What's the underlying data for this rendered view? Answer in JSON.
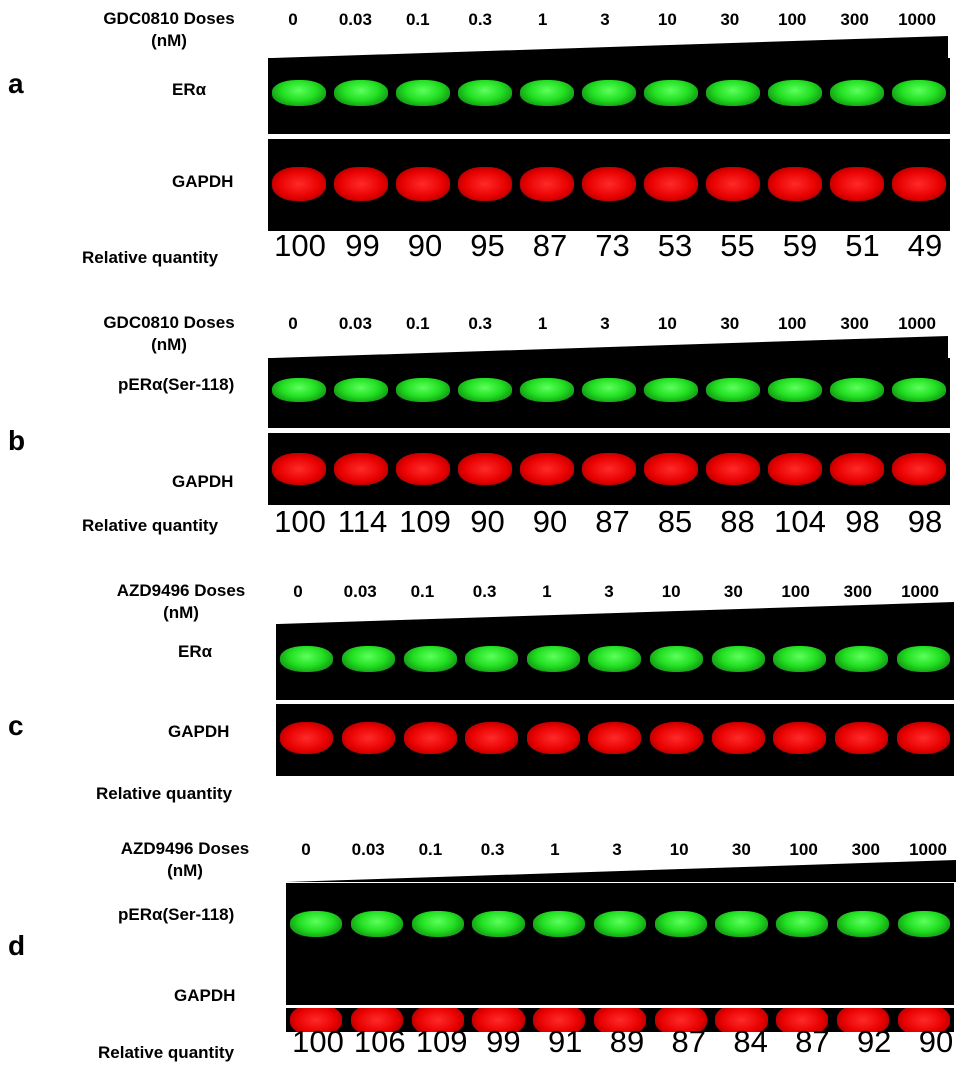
{
  "doses": [
    "0",
    "0.03",
    "0.1",
    "0.3",
    "1",
    "3",
    "10",
    "30",
    "100",
    "300",
    "1000"
  ],
  "panels": [
    {
      "letter": "a",
      "dose_title": "GDC0810 Doses",
      "dose_unit": "(nM)",
      "bands": [
        "ERα",
        "GAPDH"
      ],
      "rq_label": "Relative quantity",
      "rq_values": [
        "100",
        "99",
        "90",
        "95",
        "87",
        "73",
        "53",
        "55",
        "59",
        "51",
        "49"
      ]
    },
    {
      "letter": "b",
      "dose_title": "GDC0810 Doses",
      "dose_unit": "(nM)",
      "bands": [
        "pERα(Ser-118)",
        "GAPDH"
      ],
      "rq_label": "Relative quantity",
      "rq_values": [
        "100",
        "114",
        "109",
        "90",
        "90",
        "87",
        "85",
        "88",
        "104",
        "98",
        "98"
      ]
    },
    {
      "letter": "c",
      "dose_title": "AZD9496 Doses",
      "dose_unit": "(nM)",
      "bands": [
        "ERα",
        "GAPDH"
      ],
      "rq_label": "Relative quantity",
      "rq_values": []
    },
    {
      "letter": "d",
      "dose_title": "AZD9496 Doses",
      "dose_unit": "(nM)",
      "bands": [
        "pERα(Ser-118)",
        "GAPDH"
      ],
      "rq_label": "Relative quantity",
      "rq_values": [
        "100",
        "106",
        "109",
        "99",
        "91",
        "89",
        "87",
        "84",
        "87",
        "92",
        "90"
      ]
    }
  ]
}
